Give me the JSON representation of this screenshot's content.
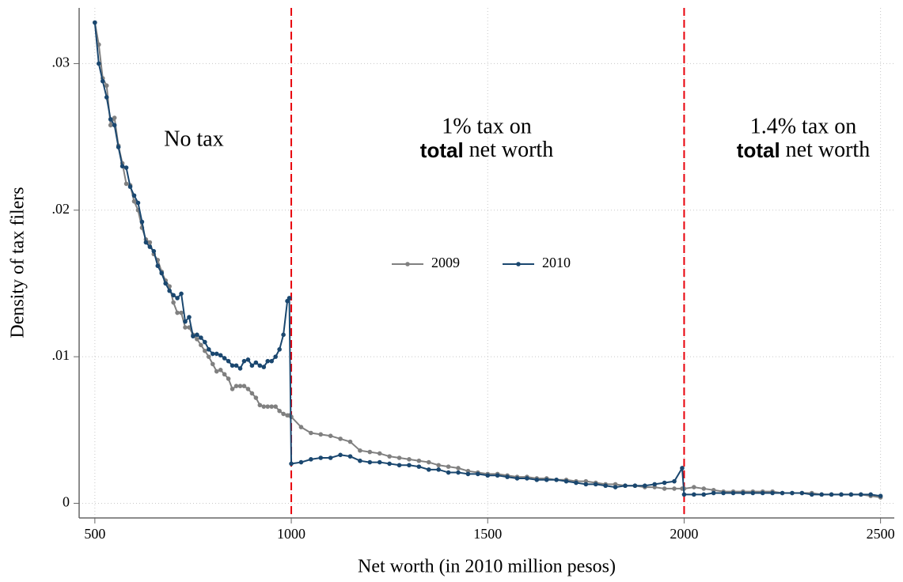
{
  "chart_data": {
    "type": "line",
    "x_label": "Net worth (in 2010 million pesos)",
    "y_label": "Density of tax filers",
    "x": [
      500,
      510,
      520,
      530,
      540,
      550,
      560,
      570,
      580,
      590,
      600,
      610,
      620,
      630,
      640,
      650,
      660,
      670,
      680,
      690,
      700,
      710,
      720,
      730,
      740,
      750,
      760,
      770,
      780,
      790,
      800,
      810,
      820,
      830,
      840,
      850,
      860,
      870,
      880,
      890,
      900,
      910,
      920,
      930,
      940,
      950,
      960,
      970,
      980,
      990,
      995,
      1000,
      1025,
      1050,
      1075,
      1100,
      1125,
      1150,
      1175,
      1200,
      1225,
      1250,
      1275,
      1300,
      1325,
      1350,
      1375,
      1400,
      1425,
      1450,
      1475,
      1500,
      1525,
      1550,
      1575,
      1600,
      1625,
      1650,
      1675,
      1700,
      1725,
      1750,
      1775,
      1800,
      1825,
      1850,
      1875,
      1900,
      1925,
      1950,
      1975,
      1995,
      2000,
      2025,
      2050,
      2075,
      2100,
      2125,
      2150,
      2175,
      2200,
      2225,
      2250,
      2275,
      2300,
      2325,
      2350,
      2375,
      2400,
      2425,
      2450,
      2475,
      2500
    ],
    "series": [
      {
        "name": "2009",
        "color": "#808080",
        "values": [
          0.0328,
          0.0313,
          0.029,
          0.0285,
          0.0258,
          0.0263,
          0.0244,
          0.0232,
          0.0218,
          0.0217,
          0.0206,
          0.02,
          0.0188,
          0.018,
          0.0178,
          0.017,
          0.0166,
          0.0158,
          0.0152,
          0.0148,
          0.0137,
          0.013,
          0.013,
          0.012,
          0.012,
          0.0115,
          0.0112,
          0.0108,
          0.0104,
          0.01,
          0.0095,
          0.009,
          0.0091,
          0.0088,
          0.0085,
          0.0078,
          0.008,
          0.008,
          0.008,
          0.0078,
          0.0075,
          0.0072,
          0.0067,
          0.0066,
          0.0066,
          0.0066,
          0.0066,
          0.0063,
          0.0061,
          0.006,
          0.006,
          0.0059,
          0.0052,
          0.0048,
          0.0047,
          0.0046,
          0.0044,
          0.0042,
          0.0036,
          0.0035,
          0.0034,
          0.0032,
          0.0031,
          0.003,
          0.0029,
          0.0028,
          0.0026,
          0.0025,
          0.0024,
          0.0022,
          0.0021,
          0.002,
          0.002,
          0.0019,
          0.0018,
          0.0018,
          0.0017,
          0.0017,
          0.0016,
          0.0016,
          0.0015,
          0.0015,
          0.0014,
          0.0013,
          0.0013,
          0.0012,
          0.0012,
          0.0011,
          0.0011,
          0.001,
          0.001,
          0.001,
          0.001,
          0.0011,
          0.001,
          0.0009,
          0.0008,
          0.0008,
          0.0008,
          0.0008,
          0.0008,
          0.0008,
          0.0007,
          0.0007,
          0.0007,
          0.0007,
          0.0006,
          0.0006,
          0.0006,
          0.0006,
          0.0006,
          0.0005,
          0.0004
        ]
      },
      {
        "name": "2010",
        "color": "#1a476f",
        "values": [
          0.0328,
          0.03,
          0.0288,
          0.0277,
          0.0262,
          0.0258,
          0.0243,
          0.023,
          0.0229,
          0.0216,
          0.021,
          0.0205,
          0.0192,
          0.0178,
          0.0175,
          0.0172,
          0.0162,
          0.0157,
          0.015,
          0.0145,
          0.0142,
          0.014,
          0.0143,
          0.0124,
          0.0127,
          0.0114,
          0.0115,
          0.0113,
          0.011,
          0.0105,
          0.0102,
          0.0102,
          0.0101,
          0.0099,
          0.0097,
          0.0094,
          0.0094,
          0.0092,
          0.0097,
          0.0098,
          0.0094,
          0.0096,
          0.0094,
          0.0093,
          0.0097,
          0.0097,
          0.01,
          0.0105,
          0.0115,
          0.0138,
          0.014,
          0.0027,
          0.0028,
          0.003,
          0.0031,
          0.0031,
          0.0033,
          0.0032,
          0.0029,
          0.0028,
          0.0028,
          0.0027,
          0.0026,
          0.0026,
          0.0025,
          0.0023,
          0.0023,
          0.0021,
          0.0021,
          0.002,
          0.002,
          0.0019,
          0.0019,
          0.0018,
          0.0017,
          0.0017,
          0.0016,
          0.0016,
          0.0016,
          0.0015,
          0.0014,
          0.0013,
          0.0013,
          0.0012,
          0.0011,
          0.0012,
          0.0012,
          0.0012,
          0.0013,
          0.0014,
          0.0015,
          0.0024,
          0.0006,
          0.0006,
          0.0006,
          0.0007,
          0.0007,
          0.0007,
          0.0007,
          0.0007,
          0.0007,
          0.0007,
          0.0007,
          0.0007,
          0.0007,
          0.0006,
          0.0006,
          0.0006,
          0.0006,
          0.0006,
          0.0006,
          0.0006,
          0.0005
        ]
      }
    ],
    "xlim": [
      460,
      2535
    ],
    "ylim": [
      -0.001,
      0.0338
    ],
    "xticks": [
      500,
      1000,
      1500,
      2000,
      2500
    ],
    "yticks": [
      0,
      {
        "value": 0.01,
        "label": ".01"
      },
      {
        "value": 0.02,
        "label": ".02"
      },
      {
        "value": 0.03,
        "label": ".03"
      }
    ],
    "grid": true,
    "legend": "center",
    "vlines": [
      1000,
      2000
    ],
    "vline_color": "#e8000b",
    "annotations": [
      {
        "text": "No tax"
      },
      {
        "text": "1% tax on",
        "bold": "total",
        "rest": "net worth"
      },
      {
        "text": "1.4% tax on",
        "bold": "total",
        "rest": "net worth"
      }
    ]
  }
}
